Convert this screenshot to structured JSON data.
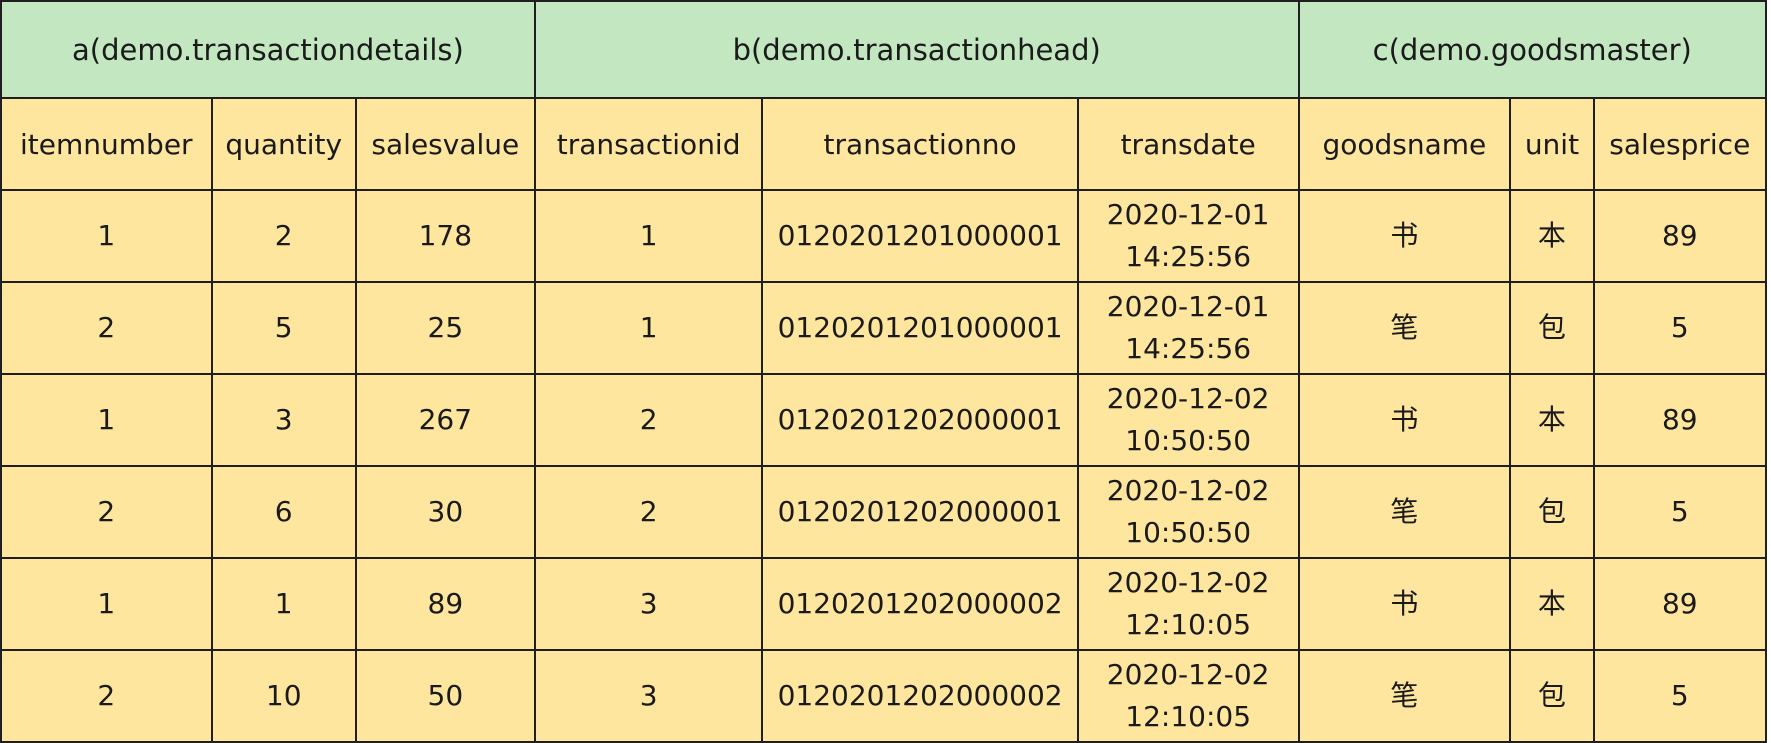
{
  "groups": [
    {
      "label": "a(demo.transactiondetails)",
      "span": 3
    },
    {
      "label": "b(demo.transactionhead)",
      "span": 3
    },
    {
      "label": "c(demo.goodsmaster)",
      "span": 3
    }
  ],
  "columns": [
    "itemnumber",
    "quantity",
    "salesvalue",
    "transactionid",
    "transactionno",
    "transdate",
    "goodsname",
    "unit",
    "salesprice"
  ],
  "rows": [
    {
      "itemnumber": "1",
      "quantity": "2",
      "salesvalue": "178",
      "transactionid": "1",
      "transactionno": "0120201201000001",
      "transdate_date": "2020-12-01",
      "transdate_time": "14:25:56",
      "goodsname": "书",
      "unit": "本",
      "salesprice": "89"
    },
    {
      "itemnumber": "2",
      "quantity": "5",
      "salesvalue": "25",
      "transactionid": "1",
      "transactionno": "0120201201000001",
      "transdate_date": "2020-12-01",
      "transdate_time": "14:25:56",
      "goodsname": "笔",
      "unit": "包",
      "salesprice": "5"
    },
    {
      "itemnumber": "1",
      "quantity": "3",
      "salesvalue": "267",
      "transactionid": "2",
      "transactionno": "0120201202000001",
      "transdate_date": "2020-12-02",
      "transdate_time": "10:50:50",
      "goodsname": "书",
      "unit": "本",
      "salesprice": "89"
    },
    {
      "itemnumber": "2",
      "quantity": "6",
      "salesvalue": "30",
      "transactionid": "2",
      "transactionno": "0120201202000001",
      "transdate_date": "2020-12-02",
      "transdate_time": "10:50:50",
      "goodsname": "笔",
      "unit": "包",
      "salesprice": "5"
    },
    {
      "itemnumber": "1",
      "quantity": "1",
      "salesvalue": "89",
      "transactionid": "3",
      "transactionno": "0120201202000002",
      "transdate_date": "2020-12-02",
      "transdate_time": "12:10:05",
      "goodsname": "书",
      "unit": "本",
      "salesprice": "89"
    },
    {
      "itemnumber": "2",
      "quantity": "10",
      "salesvalue": "50",
      "transactionid": "3",
      "transactionno": "0120201202000002",
      "transdate_date": "2020-12-02",
      "transdate_time": "12:10:05",
      "goodsname": "笔",
      "unit": "包",
      "salesprice": "5"
    }
  ],
  "colors": {
    "group_header_bg": "#c3e8c1",
    "body_bg": "#fee69e",
    "border": "#1f1f1f"
  }
}
